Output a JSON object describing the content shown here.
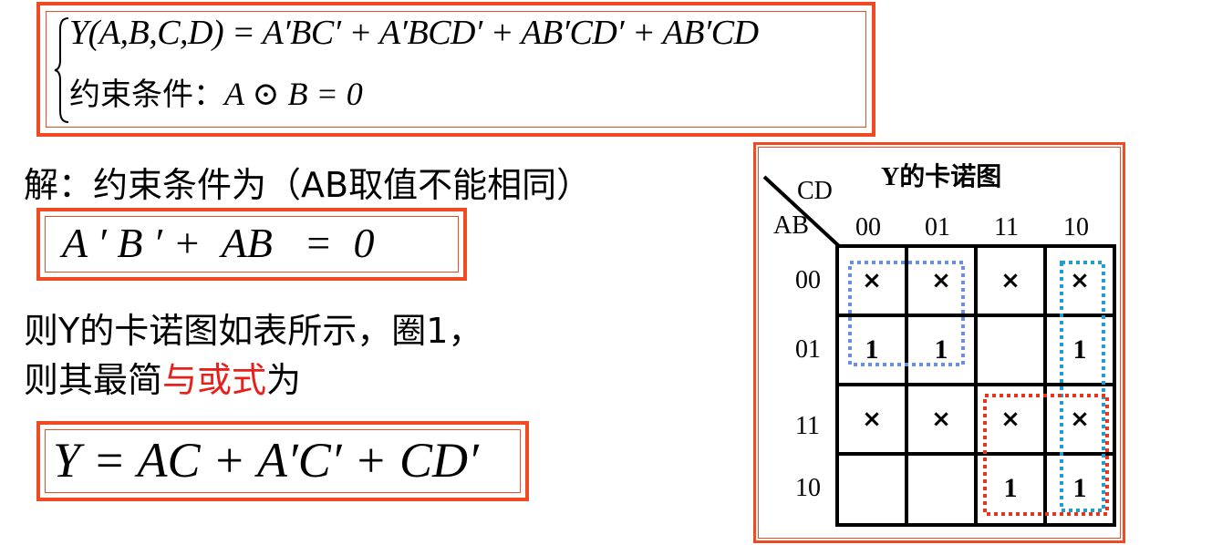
{
  "equation_box": {
    "line1": "Y(A,B,C,D) = A′BC′ + A′BCD′ + AB′CD′ + AB′CD",
    "line2_cn": "约束条件：",
    "line2_math": "A ⊙ B = 0"
  },
  "solution": {
    "intro": "解：约束条件为（AB取值不能相同）",
    "constraint": "A ′ B ′ +  AB   =  0",
    "para_line1": "则Y的卡诺图如表所示，圈1，",
    "para_line2_a": "则其最简",
    "para_line2_red": "与或式",
    "para_line2_b": "为",
    "result": "Y = AC + A′C′ + CD′"
  },
  "kmap": {
    "title": "Y的卡诺图",
    "row_var": "AB",
    "col_var": "CD",
    "col_headers": [
      "00",
      "01",
      "11",
      "10"
    ],
    "row_headers": [
      "00",
      "01",
      "11",
      "10"
    ],
    "cells": [
      [
        "×",
        "×",
        "×",
        "×"
      ],
      [
        "1",
        "1",
        "",
        "1"
      ],
      [
        "×",
        "×",
        "×",
        "×"
      ],
      [
        "",
        "",
        "1",
        "1"
      ]
    ],
    "colors": {
      "border": "#f04a23",
      "group_blue": "#6a8fe0",
      "group_cyan": "#1f9fd0",
      "group_red": "#e8341c"
    }
  }
}
